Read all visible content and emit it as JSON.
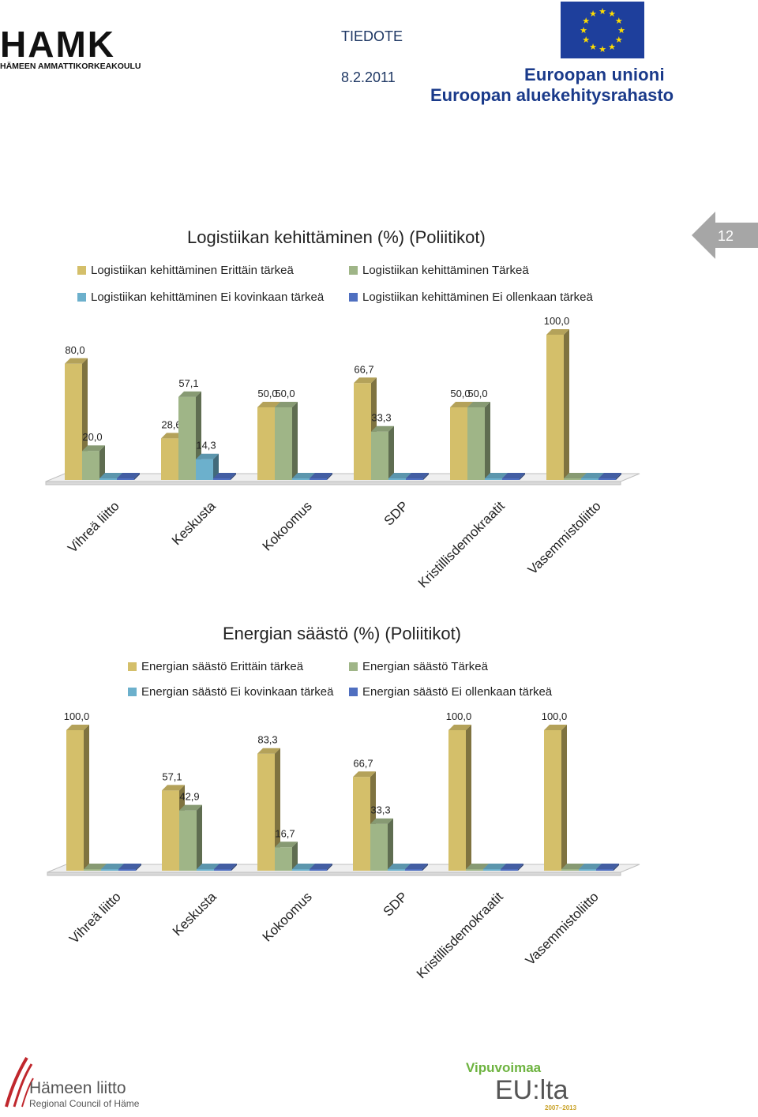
{
  "header": {
    "notice_label": "TIEDOTE",
    "date": "8.2.2011",
    "hamk_logo_text": "HAMK",
    "hamk_subtitle": "HÄMEEN AMMATTIKORKEAKOULU",
    "eu_line1": "Euroopan unioni",
    "eu_line2": "Euroopan aluekehitysrahasto"
  },
  "page_number": "12",
  "colors": {
    "erittain": "#d4bf6a",
    "tarkea": "#9fb587",
    "ei_kovinkaan": "#6cb0cc",
    "ei_ollenkaan": "#4f6fc0",
    "floor": "#e8e8e8",
    "badge": "#a6a6a6"
  },
  "legends": {
    "logistiikka": [
      "Logistiikan kehittäminen Erittäin tärkeä",
      "Logistiikan kehittäminen Tärkeä",
      "Logistiikan kehittäminen Ei kovinkaan tärkeä",
      "Logistiikan kehittäminen Ei ollenkaan tärkeä"
    ],
    "energia": [
      "Energian säästö Erittäin tärkeä",
      "Energian säästö Tärkeä",
      "Energian säästö Ei kovinkaan tärkeä",
      "Energian säästö Ei ollenkaan tärkeä"
    ]
  },
  "chart_data": [
    {
      "type": "bar",
      "title": "Logistiikan kehittäminen (%) (Poliitikot)",
      "categories": [
        "Vihreä liitto",
        "Keskusta",
        "Kokoomus",
        "SDP",
        "Kristillisdemokraatit",
        "Vasemmistoliitto"
      ],
      "series": [
        {
          "name": "Logistiikan kehittäminen Erittäin tärkeä",
          "values": [
            80.0,
            28.6,
            50.0,
            66.7,
            50.0,
            100.0
          ]
        },
        {
          "name": "Logistiikan kehittäminen Tärkeä",
          "values": [
            20.0,
            57.1,
            50.0,
            33.3,
            50.0,
            0
          ]
        },
        {
          "name": "Logistiikan kehittäminen Ei kovinkaan tärkeä",
          "values": [
            0,
            14.3,
            0,
            0,
            0,
            0
          ]
        },
        {
          "name": "Logistiikan kehittäminen Ei ollenkaan tärkeä",
          "values": [
            0,
            0,
            0,
            0,
            0,
            0
          ]
        }
      ],
      "data_labels": [
        [
          "80,0",
          "20,0",
          "",
          ""
        ],
        [
          "28,6",
          "57,1",
          "14,3",
          ""
        ],
        [
          "50,0",
          "50,0",
          "",
          ""
        ],
        [
          "66,7",
          "33,3",
          "",
          ""
        ],
        [
          "50,0",
          "50,0",
          "",
          ""
        ],
        [
          "100,0",
          "",
          "",
          ""
        ]
      ],
      "ylim": [
        0,
        100
      ],
      "grid": false,
      "legend_placement": "top"
    },
    {
      "type": "bar",
      "title": "Energian säästö (%) (Poliitikot)",
      "categories": [
        "Vihreä liitto",
        "Keskusta",
        "Kokoomus",
        "SDP",
        "Kristillisdemokraatit",
        "Vasemmistoliitto"
      ],
      "series": [
        {
          "name": "Energian säästö Erittäin tärkeä",
          "values": [
            100.0,
            57.1,
            83.3,
            66.7,
            100.0,
            100.0
          ]
        },
        {
          "name": "Energian säästö Tärkeä",
          "values": [
            0,
            42.9,
            16.7,
            33.3,
            0,
            0
          ]
        },
        {
          "name": "Energian säästö Ei kovinkaan tärkeä",
          "values": [
            0,
            0,
            0,
            0,
            0,
            0
          ]
        },
        {
          "name": "Energian säästö Ei ollenkaan tärkeä",
          "values": [
            0,
            0,
            0,
            0,
            0,
            0
          ]
        }
      ],
      "data_labels": [
        [
          "100,0",
          "",
          "",
          ""
        ],
        [
          "57,1",
          "42,9",
          "",
          ""
        ],
        [
          "83,3",
          "16,7",
          "",
          ""
        ],
        [
          "66,7",
          "33,3",
          "",
          ""
        ],
        [
          "100,0",
          "",
          "",
          ""
        ],
        [
          "100,0",
          "",
          "",
          ""
        ]
      ],
      "ylim": [
        0,
        100
      ],
      "grid": false,
      "legend_placement": "top"
    }
  ],
  "footer": {
    "hameen_liitto_name": "Hämeen liitto",
    "hameen_liitto_sub": "Regional Council of Häme",
    "vipuvoimaa_line1": "Vipuvoimaa",
    "vipuvoimaa_line2": "EU:lta",
    "vipuvoimaa_years": "2007–2013"
  }
}
